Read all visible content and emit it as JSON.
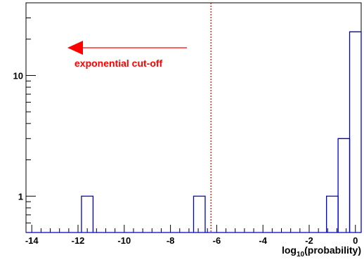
{
  "chart_data": {
    "type": "histogram",
    "title": "",
    "xlabel": {
      "base": "log",
      "subscript": "10",
      "rest": "(probability)"
    },
    "ylabel": "",
    "xlim": [
      -14.25,
      0.25
    ],
    "ylim": [
      0.5,
      40
    ],
    "y_scale": "log",
    "grid": false,
    "legend": "none",
    "x_ticks": [
      {
        "value": -14,
        "label": "-14"
      },
      {
        "value": -12,
        "label": "-12"
      },
      {
        "value": -10,
        "label": "-10"
      },
      {
        "value": -8,
        "label": "-8"
      },
      {
        "value": -6,
        "label": "-6"
      },
      {
        "value": -4,
        "label": "-4"
      },
      {
        "value": -2,
        "label": "-2"
      },
      {
        "value": 0,
        "label": "0"
      }
    ],
    "y_ticks": [
      {
        "value": 1,
        "label": "1"
      },
      {
        "value": 10,
        "label": "10"
      }
    ],
    "series": [
      {
        "color": "#0000cc",
        "bins": [
          {
            "x0": -11.85,
            "x1": -11.35,
            "count": 1
          },
          {
            "x0": -7.0,
            "x1": -6.5,
            "count": 1
          },
          {
            "x0": -1.25,
            "x1": -0.75,
            "count": 1
          },
          {
            "x0": -0.75,
            "x1": -0.25,
            "count": 3
          },
          {
            "x0": -0.25,
            "x1": 0.25,
            "count": 23
          }
        ]
      }
    ],
    "cutoff": {
      "x": -6.25,
      "color": "#cc0000",
      "style": "dotted"
    },
    "annotation": {
      "text": "exponential cut-off",
      "color": "#ff0000",
      "arrow": "left"
    }
  }
}
